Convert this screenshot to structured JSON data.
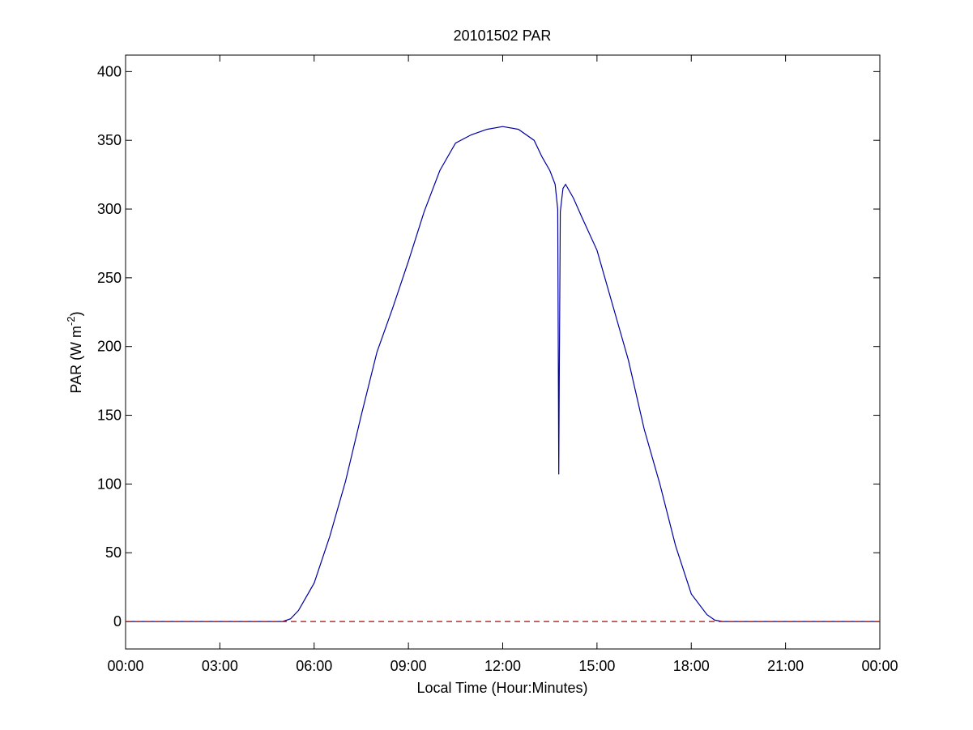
{
  "chart_data": {
    "type": "line",
    "title": "20101502 PAR",
    "xlabel": "Local Time (Hour:Minutes)",
    "ylabel_main": "PAR (W m",
    "ylabel_sup": "-2",
    "ylabel_close": ")",
    "xlim": [
      "00:00",
      "24:00"
    ],
    "ylim": [
      -20,
      412
    ],
    "x_ticks": [
      "00:00",
      "03:00",
      "06:00",
      "09:00",
      "12:00",
      "15:00",
      "18:00",
      "21:00",
      "00:00"
    ],
    "y_ticks": [
      0,
      50,
      100,
      150,
      200,
      250,
      300,
      350,
      400
    ],
    "grid": false,
    "series": [
      {
        "color": "#0000a0",
        "x": [
          "00:00",
          "05:00",
          "05:15",
          "05:30",
          "06:00",
          "06:30",
          "07:00",
          "07:30",
          "08:00",
          "08:30",
          "09:00",
          "09:30",
          "10:00",
          "10:30",
          "11:00",
          "11:30",
          "12:00",
          "12:30",
          "13:00",
          "13:15",
          "13:30",
          "13:40",
          "13:45",
          "13:47",
          "13:48",
          "13:50",
          "13:55",
          "14:00",
          "14:15",
          "14:30",
          "15:00",
          "15:30",
          "16:00",
          "16:30",
          "17:00",
          "17:30",
          "18:00",
          "18:30",
          "18:45",
          "19:00",
          "21:00",
          "24:00"
        ],
        "y": [
          0,
          0,
          2,
          8,
          28,
          62,
          102,
          150,
          196,
          228,
          262,
          298,
          328,
          348,
          354,
          358,
          360,
          358,
          350,
          338,
          328,
          318,
          300,
          107,
          175,
          298,
          315,
          318,
          308,
          295,
          270,
          230,
          190,
          140,
          100,
          55,
          20,
          5,
          1,
          0,
          0,
          0
        ]
      },
      {
        "color": "#c00000",
        "dashed": true,
        "x": [
          "00:00",
          "24:00"
        ],
        "y": [
          0,
          0
        ]
      }
    ]
  }
}
